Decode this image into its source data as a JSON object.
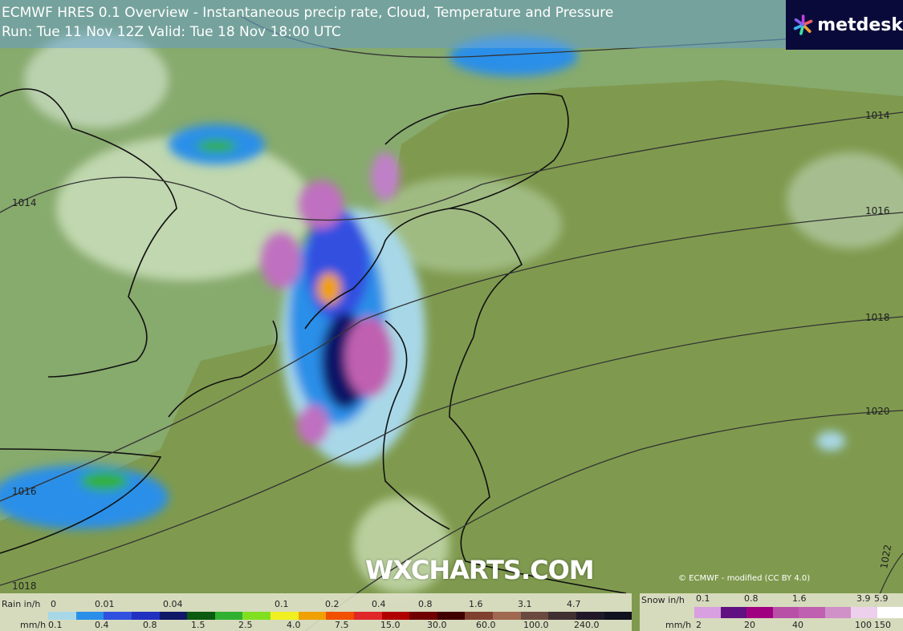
{
  "header": {
    "line1_model": "ECMWF HRES 0.1",
    "line1_rest": "Overview - Instantaneous precip rate, Cloud, Temperature and Pressure",
    "line2": "Run: Tue 11 Nov 12Z Valid: Tue 18 Nov 18:00 UTC"
  },
  "logo": {
    "text": "metdesk",
    "icon": "asterisk-flower-icon"
  },
  "watermark": "WXCHARTS.COM",
  "copyright": "© ECMWF - modified (CC BY 4.0)",
  "isobars": [
    {
      "label": "1014"
    },
    {
      "label": "1014"
    },
    {
      "label": "1016"
    },
    {
      "label": "1016"
    },
    {
      "label": "1018"
    },
    {
      "label": "1018"
    },
    {
      "label": "1020"
    },
    {
      "label": "1022"
    }
  ],
  "rain_legend": {
    "title_top": "Rain in/h",
    "title_bottom": "mm/h",
    "top_labels": [
      "0",
      "0.01",
      "0.04",
      "0.1",
      "0.2",
      "0.4",
      "0.8",
      "1.6",
      "3.1",
      "4.7"
    ],
    "bottom_labels": [
      "0.1",
      "0.4",
      "0.8",
      "1.5",
      "2.5",
      "4.0",
      "7.5",
      "15.0",
      "30.0",
      "60.0",
      "100.0",
      "240.0"
    ],
    "colors": [
      "#a8d8e8",
      "#2a8fe8",
      "#3050e0",
      "#2030c0",
      "#101868",
      "#0a5a10",
      "#30b030",
      "#80e020",
      "#f0f020",
      "#f0a000",
      "#f05000",
      "#e02828",
      "#b00000",
      "#700000",
      "#400000",
      "#804030",
      "#a06850",
      "#6a4a40",
      "#403030",
      "#201828",
      "#101020"
    ]
  },
  "snow_legend": {
    "title_top": "Snow in/h",
    "title_bottom": "mm/h",
    "top_labels": [
      "0.1",
      "0.8",
      "1.6",
      "3.9",
      "5.9"
    ],
    "bottom_labels": [
      "2",
      "20",
      "40",
      "100",
      "150"
    ],
    "colors": [
      "#d8a0e0",
      "#601080",
      "#a00080",
      "#b850a8",
      "#c060b0",
      "#d090c8",
      "#ecd0ec",
      "#ffffff"
    ]
  }
}
